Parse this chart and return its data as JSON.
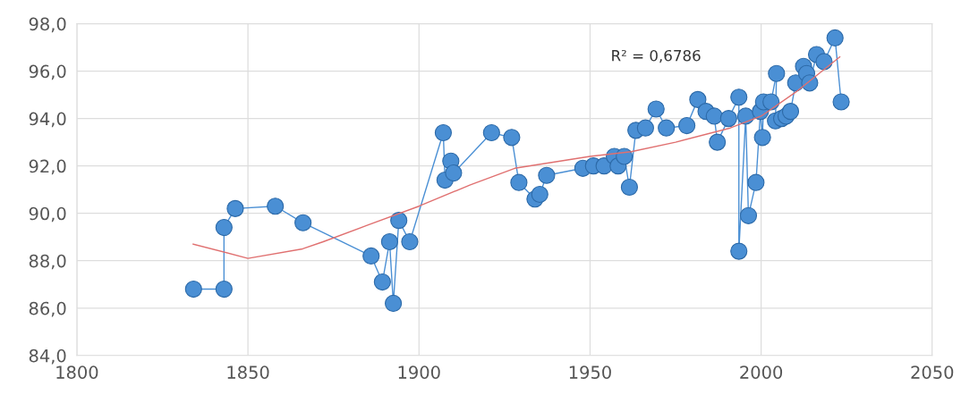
{
  "chart_data": {
    "type": "line",
    "annotations": [
      "R² = 0,6786"
    ],
    "grid": true,
    "xlim": [
      1800,
      2050
    ],
    "xticks": [
      1800,
      1850,
      1900,
      1950,
      2000,
      2050
    ],
    "ylim": [
      84,
      98
    ],
    "yticks": [
      {
        "value": 84,
        "label": "84,0"
      },
      {
        "value": 86,
        "label": "86,0"
      },
      {
        "value": 88,
        "label": "88,0"
      },
      {
        "value": 90,
        "label": "90,0"
      },
      {
        "value": 92,
        "label": "92,0"
      },
      {
        "value": 94,
        "label": "94,0"
      },
      {
        "value": 96,
        "label": "96,0"
      },
      {
        "value": 98,
        "label": "98,0"
      }
    ],
    "series": [
      {
        "marker": "circle",
        "line_style": "solid",
        "color": "#4a8fd4",
        "x": [
          1834.1,
          1843.0,
          1843.0,
          1846.3,
          1858.0,
          1866.1,
          1886.0,
          1889.3,
          1891.4,
          1892.5,
          1894.1,
          1897.3,
          1907.1,
          1907.6,
          1909.3,
          1910.1,
          1921.2,
          1927.1,
          1929.2,
          1933.9,
          1935.3,
          1937.3,
          1947.9,
          1951.0,
          1954.1,
          1957.1,
          1958.2,
          1960.0,
          1961.5,
          1963.4,
          1966.2,
          1969.3,
          1972.3,
          1978.3,
          1981.5,
          1983.9,
          1986.3,
          1987.2,
          1990.5,
          1993.5,
          1993.5,
          1995.5,
          1996.3,
          1998.5,
          1999.8,
          2000.4,
          2000.7,
          2002.9,
          2004.5,
          2004.2,
          2006.0,
          2007.3,
          2008.6,
          2010.1,
          2012.4,
          2013.3,
          2014.2,
          2016.2,
          2018.4,
          2021.6,
          2023.4
        ],
        "values": [
          86.8,
          86.8,
          89.4,
          90.2,
          90.3,
          89.6,
          88.2,
          87.1,
          88.8,
          86.2,
          89.7,
          88.8,
          93.4,
          91.4,
          92.2,
          91.7,
          93.4,
          93.2,
          91.3,
          90.6,
          90.8,
          91.6,
          91.9,
          92.0,
          92.0,
          92.4,
          92.0,
          92.4,
          91.1,
          93.5,
          93.6,
          94.4,
          93.6,
          93.7,
          94.8,
          94.3,
          94.1,
          93.0,
          94.0,
          94.9,
          88.4,
          94.1,
          89.9,
          91.3,
          94.3,
          93.2,
          94.7,
          94.7,
          95.9,
          93.9,
          94.0,
          94.1,
          94.3,
          95.5,
          96.2,
          95.9,
          95.5,
          96.7,
          96.4,
          97.4,
          94.7
        ]
      },
      {
        "marker": "none",
        "line_style": "solid",
        "color": "#e07070",
        "x": [
          1834,
          1850,
          1866,
          1872,
          1885,
          1900,
          1915,
          1928,
          1950,
          1962,
          1975,
          1991,
          2000,
          2010,
          2023
        ],
        "values": [
          88.7,
          88.1,
          88.5,
          88.8,
          89.5,
          90.3,
          91.2,
          91.9,
          92.4,
          92.6,
          93.0,
          93.6,
          94.1,
          95.1,
          96.6
        ]
      }
    ]
  }
}
